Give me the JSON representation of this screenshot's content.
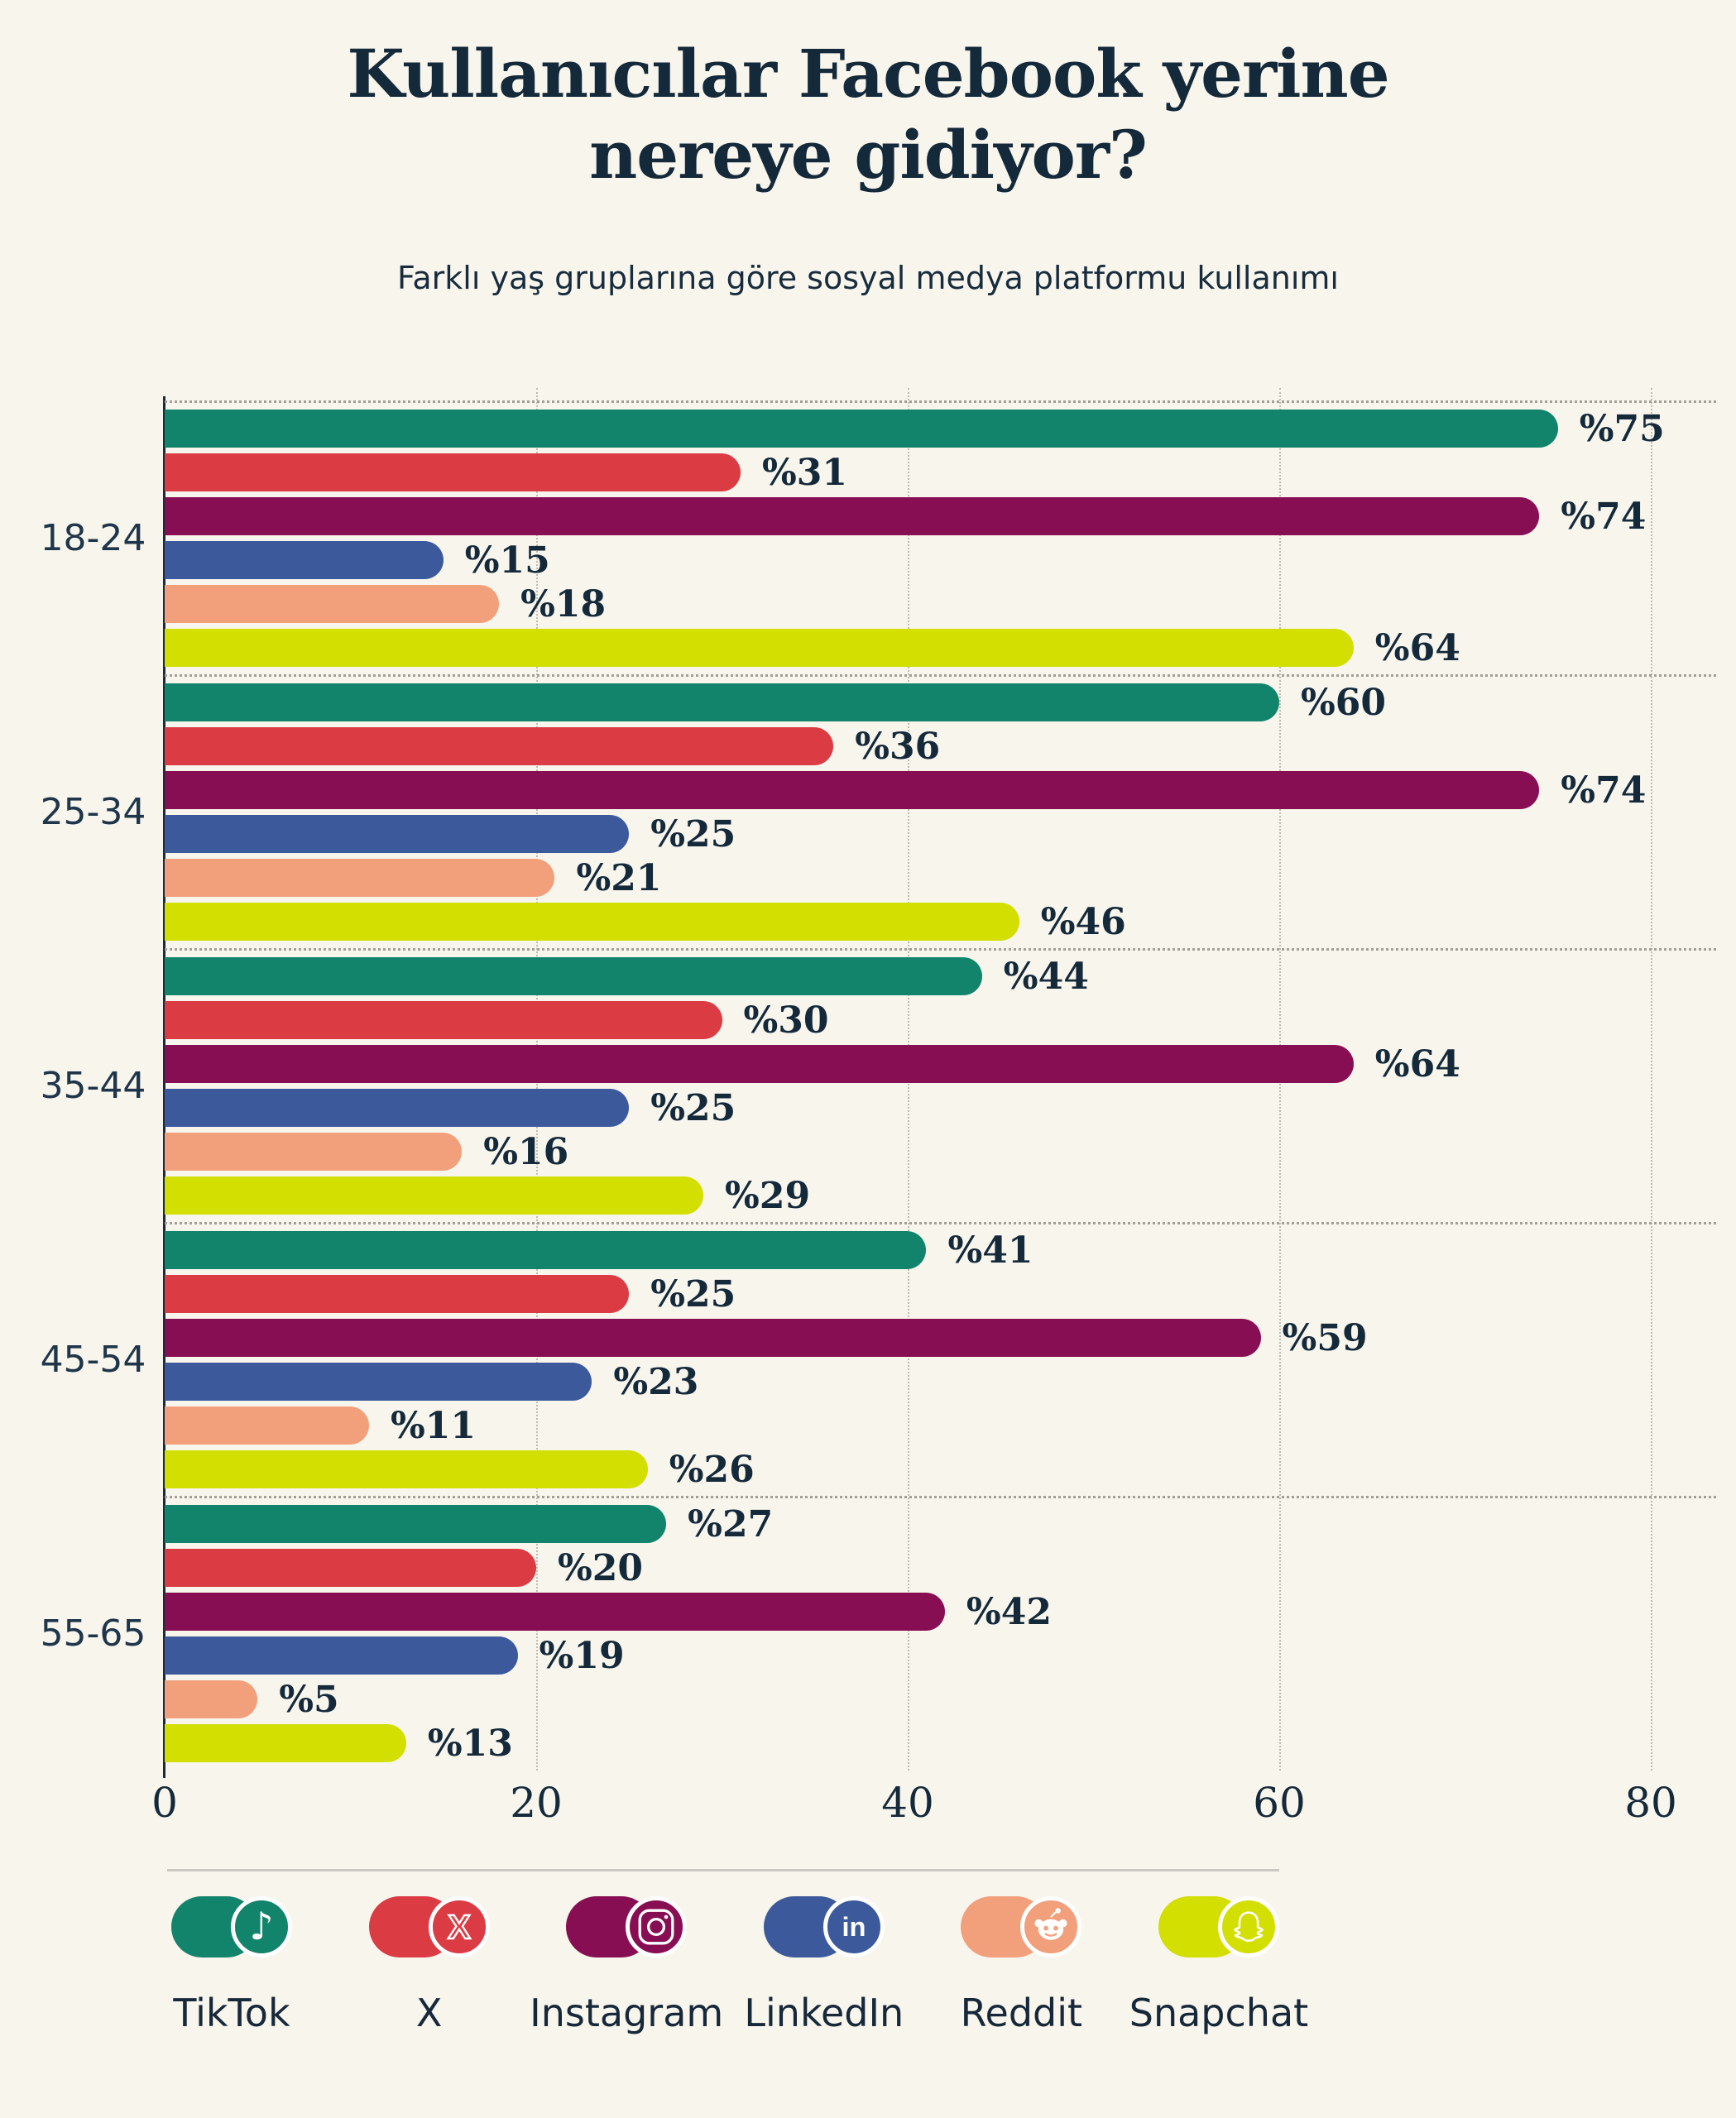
{
  "header": {
    "title_line1": "Kullanıcılar Facebook yerine",
    "title_line2": "nereye gidiyor?",
    "subtitle": "Farklı yaş gruplarına göre sosyal medya platformu kullanımı"
  },
  "chart_data": {
    "type": "bar",
    "orientation": "horizontal",
    "title": "Kullanıcılar Facebook yerine nereye gidiyor?",
    "subtitle": "Farklı yaş gruplarına göre sosyal medya platformu kullanımı",
    "categories": [
      "18-24",
      "25-34",
      "35-44",
      "45-54",
      "55-65"
    ],
    "series": [
      {
        "name": "TikTok",
        "color": "#12846B",
        "values": [
          75,
          60,
          44,
          41,
          27
        ]
      },
      {
        "name": "X",
        "color": "#DB3B43",
        "values": [
          31,
          36,
          30,
          25,
          20
        ]
      },
      {
        "name": "Instagram",
        "color": "#870E52",
        "values": [
          74,
          74,
          64,
          59,
          42
        ]
      },
      {
        "name": "LinkedIn",
        "color": "#3C5A9B",
        "values": [
          15,
          25,
          25,
          23,
          19
        ]
      },
      {
        "name": "Reddit",
        "color": "#F2A07B",
        "values": [
          18,
          21,
          16,
          11,
          5
        ]
      },
      {
        "name": "Snapchat",
        "color": "#D2DF00",
        "values": [
          64,
          46,
          29,
          26,
          13
        ]
      }
    ],
    "value_label_prefix": "%",
    "xlim": [
      0,
      80
    ],
    "x_ticks": [
      "0",
      "20",
      "40",
      "60",
      "80"
    ],
    "grid": "vertical-dotted",
    "group_separators": "dotted-horizontal",
    "legend_position": "bottom"
  },
  "legend": {
    "items": [
      {
        "label": "TikTok",
        "icon": "tiktok-icon",
        "color": "#12846B"
      },
      {
        "label": "X",
        "icon": "x-icon",
        "color": "#DB3B43"
      },
      {
        "label": "Instagram",
        "icon": "instagram-icon",
        "color": "#870E52"
      },
      {
        "label": "LinkedIn",
        "icon": "linkedin-icon",
        "color": "#3C5A9B"
      },
      {
        "label": "Reddit",
        "icon": "reddit-icon",
        "color": "#F2A07B"
      },
      {
        "label": "Snapchat",
        "icon": "snapchat-icon",
        "color": "#D2DF00"
      }
    ]
  },
  "colors": {
    "background": "#F8F5ED",
    "text": "#14293A",
    "axis": "#1A2B3C",
    "gridline": "#BFBCB4",
    "separator": "#A39F97",
    "legend_divider": "#CBC8C1"
  }
}
